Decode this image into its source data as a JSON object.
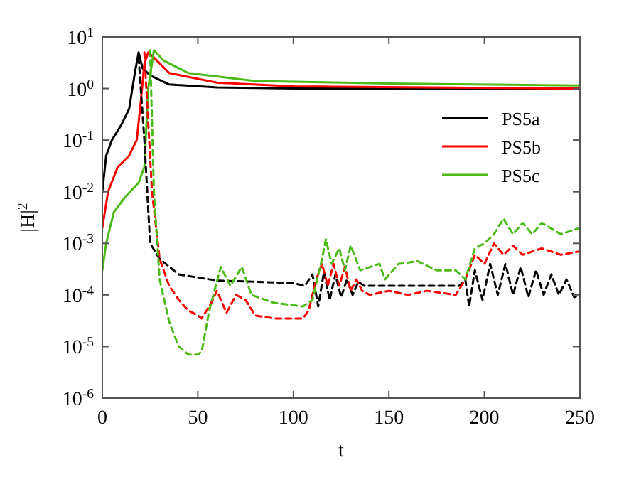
{
  "chart_data": {
    "type": "line",
    "xlabel": "t",
    "ylabel": "|H|$^{2}$",
    "log": "y",
    "legend": "right",
    "grid": false,
    "xlim": [
      0,
      250
    ],
    "xticks": [
      0,
      50,
      100,
      150,
      200,
      250
    ],
    "ylim": [
      1e-06,
      10
    ],
    "yticks": [
      {
        "value": 1e-06,
        "label": "10$^{-6}$"
      },
      {
        "value": 1e-05,
        "label": "10$^{-5}$"
      },
      {
        "value": 0.0001,
        "label": "10$^{-4}$"
      },
      {
        "value": 0.001,
        "label": "10$^{-3}$"
      },
      {
        "value": 0.01,
        "label": "10$^{-2}$"
      },
      {
        "value": 0.1,
        "label": "10$^{-1}$"
      },
      {
        "value": 1,
        "label": "10$^{0}$"
      },
      {
        "value": 10,
        "label": "10$^{1}$"
      }
    ],
    "series": [
      {
        "name": "PS5a",
        "color": "#000000",
        "line_style": "solid",
        "x": [
          0,
          2,
          5,
          10,
          14,
          17,
          19,
          21,
          25,
          35,
          60,
          100,
          250
        ],
        "values": [
          0.01,
          0.05,
          0.1,
          0.2,
          0.4,
          2,
          5,
          2.5,
          1.8,
          1.2,
          1.05,
          1.0,
          1.0
        ]
      },
      {
        "name": "PS5b",
        "color": "#ff0000",
        "line_style": "solid",
        "x": [
          0,
          3,
          8,
          14,
          18,
          20,
          22,
          24,
          27,
          35,
          60,
          100,
          250
        ],
        "values": [
          0.002,
          0.01,
          0.03,
          0.05,
          0.1,
          0.5,
          3,
          5,
          4,
          2,
          1.3,
          1.1,
          1.0
        ]
      },
      {
        "name": "PS5c",
        "color": "#4cbb17",
        "line_style": "solid",
        "x": [
          0,
          2,
          6,
          12,
          19,
          22,
          24,
          27,
          32,
          45,
          80,
          150,
          250
        ],
        "values": [
          0.0003,
          0.001,
          0.004,
          0.008,
          0.015,
          0.03,
          1,
          5.5,
          3.5,
          2,
          1.4,
          1.25,
          1.15
        ]
      },
      {
        "color": "#000000",
        "line_style": "dashed",
        "x": [
          19,
          22,
          25,
          30,
          40,
          60,
          100,
          106,
          110,
          113,
          116,
          119,
          122,
          125,
          128,
          131,
          134,
          137,
          150,
          187,
          190,
          192,
          195,
          199,
          203,
          207,
          211,
          215,
          219,
          223,
          227,
          231,
          235,
          239,
          243,
          247,
          250
        ],
        "values": [
          4,
          0.1,
          0.001,
          0.0005,
          0.00025,
          0.00019,
          0.00017,
          0.00015,
          0.00025,
          6e-05,
          0.00028,
          8e-05,
          0.00025,
          9e-05,
          0.0002,
          0.0001,
          0.00018,
          0.00015,
          0.00015,
          0.00015,
          0.0002,
          6e-05,
          0.0003,
          8e-05,
          0.0004,
          0.0001,
          0.0004,
          0.0001,
          0.00035,
          9e-05,
          0.0003,
          0.0001,
          0.00025,
          0.0001,
          0.0002,
          9e-05,
          0.0001
        ]
      },
      {
        "color": "#ff0000",
        "line_style": "dashed",
        "x": [
          22,
          26,
          30,
          35,
          40,
          45,
          50,
          52,
          57,
          60,
          65,
          70,
          75,
          80,
          90,
          105,
          108,
          112,
          115,
          118,
          121,
          124,
          127,
          130,
          133,
          136,
          140,
          150,
          160,
          170,
          185,
          190,
          195,
          200,
          205,
          210,
          215,
          220,
          230,
          240,
          250
        ],
        "values": [
          5,
          0.01,
          0.0005,
          0.00015,
          8e-05,
          5e-05,
          4e-05,
          3.5e-05,
          7e-05,
          0.00012,
          4.5e-05,
          0.0001,
          8e-05,
          4e-05,
          3.5e-05,
          3.5e-05,
          5e-05,
          0.0002,
          0.0004,
          0.00015,
          0.0004,
          0.00015,
          0.00035,
          0.00012,
          0.0002,
          0.00012,
          0.0001,
          0.00012,
          0.0001,
          0.00012,
          0.0001,
          0.0002,
          0.0006,
          0.0004,
          0.001,
          0.0006,
          0.0009,
          0.0006,
          0.0008,
          0.0006,
          0.0007
        ]
      },
      {
        "color": "#4cbb17",
        "line_style": "dashed",
        "x": [
          25,
          27,
          30,
          35,
          40,
          45,
          50,
          52,
          56,
          62,
          67,
          73,
          78,
          90,
          105,
          110,
          115,
          117,
          120,
          124,
          127,
          130,
          135,
          145,
          148,
          155,
          165,
          175,
          185,
          190,
          195,
          200,
          205,
          210,
          215,
          220,
          225,
          230,
          240,
          250
        ],
        "values": [
          5.5,
          0.01,
          0.0002,
          3e-05,
          1e-05,
          7e-06,
          7e-06,
          8e-06,
          5e-05,
          0.00035,
          0.00015,
          0.00035,
          0.0001,
          7e-05,
          6e-05,
          8e-05,
          0.0005,
          0.0012,
          0.0004,
          0.0008,
          0.0003,
          0.0009,
          0.0003,
          0.0004,
          0.0002,
          0.0004,
          0.00045,
          0.0003,
          0.0003,
          0.0002,
          0.0008,
          0.001,
          0.0015,
          0.003,
          0.0015,
          0.0025,
          0.0015,
          0.0025,
          0.0015,
          0.002
        ]
      }
    ]
  }
}
